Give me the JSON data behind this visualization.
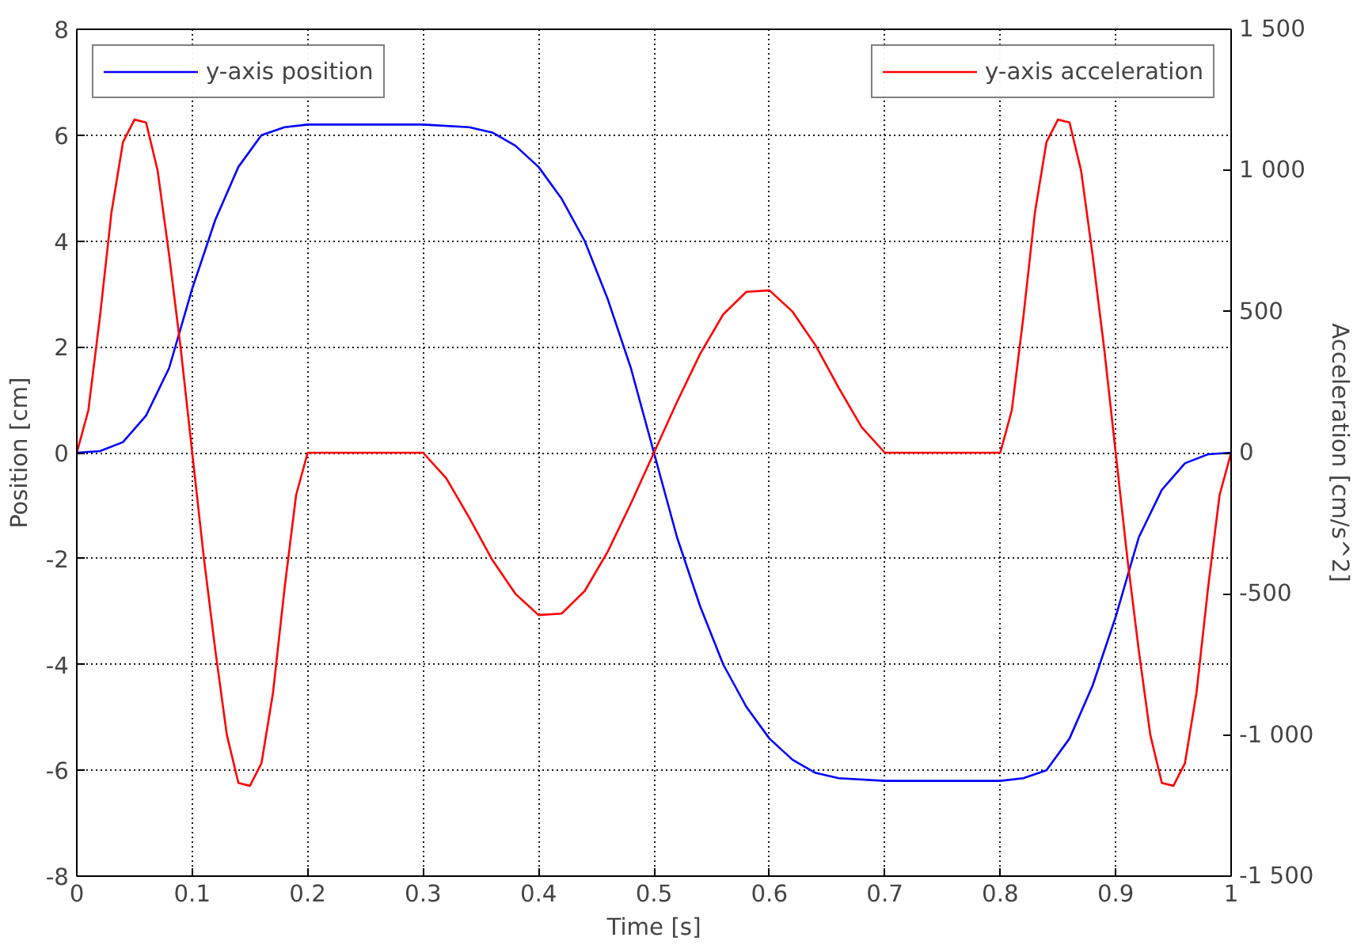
{
  "chart_data": {
    "type": "line",
    "xlabel": "Time [s]",
    "ylabel": "Position [cm]",
    "y2label": "Acceleration [cm/s^2]",
    "xlim": [
      0,
      1
    ],
    "xticks": [
      0,
      0.1,
      0.2,
      0.3,
      0.4,
      0.5,
      0.6,
      0.7,
      0.8,
      0.9,
      1
    ],
    "ylim": [
      -8,
      8
    ],
    "yticks": [
      -8,
      -6,
      -4,
      -2,
      0,
      2,
      4,
      6,
      8
    ],
    "y2lim": [
      -1500,
      1500
    ],
    "y2ticks": [
      {
        "value": -1500,
        "label": "-1 500"
      },
      {
        "value": -1000,
        "label": "-1 000"
      },
      {
        "value": -500,
        "label": "-500"
      },
      {
        "value": 0,
        "label": "0"
      },
      {
        "value": 500,
        "label": "500"
      },
      {
        "value": 1000,
        "label": "1 000"
      },
      {
        "value": 1500,
        "label": "1 500"
      }
    ],
    "grid": true,
    "legend": "top",
    "line_style": "solid",
    "series": [
      {
        "name": "y-axis position",
        "color": "#0000ff",
        "x": [
          0,
          0.02,
          0.04,
          0.06,
          0.08,
          0.1,
          0.12,
          0.14,
          0.16,
          0.18,
          0.2,
          0.3,
          0.34,
          0.36,
          0.38,
          0.4,
          0.42,
          0.44,
          0.46,
          0.48,
          0.5,
          0.52,
          0.54,
          0.56,
          0.58,
          0.6,
          0.62,
          0.64,
          0.66,
          0.7,
          0.8,
          0.82,
          0.84,
          0.86,
          0.88,
          0.9,
          0.92,
          0.94,
          0.96,
          0.98,
          1
        ],
        "values": [
          0,
          0.03,
          0.2,
          0.7,
          1.6,
          3.1,
          4.4,
          5.4,
          6.0,
          6.15,
          6.2,
          6.2,
          6.15,
          6.05,
          5.8,
          5.4,
          4.8,
          4.0,
          2.9,
          1.6,
          0,
          -1.6,
          -2.9,
          -4.0,
          -4.8,
          -5.4,
          -5.8,
          -6.05,
          -6.15,
          -6.2,
          -6.2,
          -6.15,
          -6.0,
          -5.4,
          -4.4,
          -3.1,
          -1.6,
          -0.7,
          -0.2,
          -0.03,
          0
        ]
      },
      {
        "name": "y-axis acceleration",
        "color": "#ff0000",
        "axis": "y2",
        "x": [
          0,
          0.01,
          0.02,
          0.03,
          0.04,
          0.05,
          0.06,
          0.07,
          0.08,
          0.09,
          0.1,
          0.11,
          0.12,
          0.13,
          0.14,
          0.15,
          0.16,
          0.17,
          0.18,
          0.19,
          0.2,
          0.3,
          0.32,
          0.34,
          0.36,
          0.38,
          0.4,
          0.42,
          0.44,
          0.46,
          0.48,
          0.5,
          0.52,
          0.54,
          0.56,
          0.58,
          0.6,
          0.62,
          0.64,
          0.66,
          0.68,
          0.7,
          0.8,
          0.81,
          0.82,
          0.83,
          0.84,
          0.85,
          0.86,
          0.87,
          0.88,
          0.89,
          0.9,
          0.91,
          0.92,
          0.93,
          0.94,
          0.95,
          0.96,
          0.97,
          0.98,
          0.99,
          1
        ],
        "values": [
          0,
          150,
          480,
          850,
          1100,
          1180,
          1170,
          1000,
          700,
          370,
          0,
          -370,
          -700,
          -1000,
          -1170,
          -1180,
          -1100,
          -850,
          -480,
          -150,
          0,
          0,
          -90,
          -230,
          -380,
          -500,
          -575,
          -570,
          -490,
          -350,
          -180,
          0,
          180,
          350,
          490,
          570,
          575,
          500,
          380,
          230,
          90,
          0,
          0,
          150,
          480,
          850,
          1100,
          1180,
          1170,
          1000,
          700,
          370,
          0,
          -370,
          -700,
          -1000,
          -1170,
          -1180,
          -1100,
          -850,
          -480,
          -150,
          0
        ]
      }
    ]
  }
}
